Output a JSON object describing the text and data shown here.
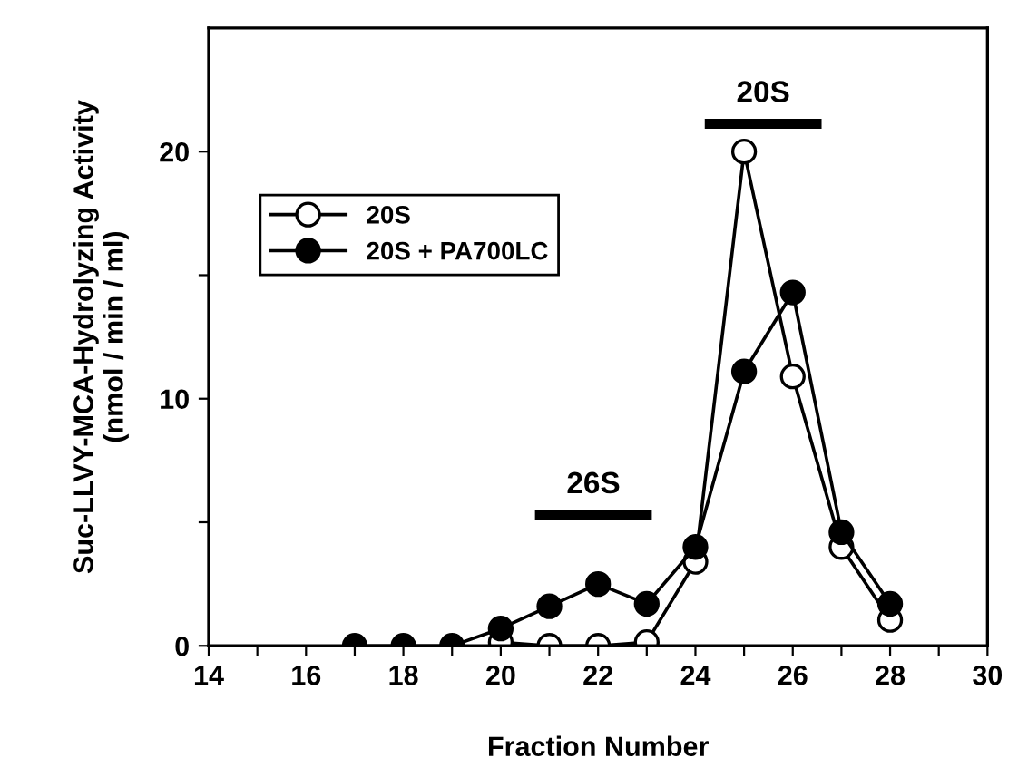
{
  "chart_data": {
    "type": "line",
    "xlabel": "Fraction Number",
    "ylabel": "Suc-LLVY-MCA-Hydrolyzing Activity\n(nmol / min / ml)",
    "xlim": [
      14,
      30
    ],
    "ylim": [
      0,
      25
    ],
    "xticks": [
      14,
      {
        "value": 15,
        "label": null
      },
      16,
      {
        "value": 17,
        "label": null
      },
      18,
      {
        "value": 19,
        "label": null
      },
      20,
      {
        "value": 21,
        "label": null
      },
      22,
      {
        "value": 23,
        "label": null
      },
      24,
      {
        "value": 25,
        "label": null
      },
      26,
      {
        "value": 27,
        "label": null
      },
      28,
      {
        "value": 29,
        "label": null
      },
      30
    ],
    "yticks": [
      0,
      {
        "value": 5,
        "label": null
      },
      10,
      {
        "value": 15,
        "label": null
      },
      20
    ],
    "marker": "circle",
    "line_style": "solid",
    "grid": false,
    "legend": "top left",
    "annotations": [
      "26S",
      "20S"
    ],
    "series": [
      {
        "name": "20S",
        "color": "#ffffff",
        "x": [
          20,
          21,
          22,
          23,
          24,
          25,
          26,
          27,
          28
        ],
        "values": [
          0.15,
          0,
          0,
          0.15,
          3.4,
          20,
          10.9,
          4.0,
          1.05
        ]
      },
      {
        "name": "20S + PA700LC",
        "color": "#000000",
        "x": [
          17,
          18,
          19,
          20,
          21,
          22,
          23,
          24,
          25,
          26,
          27,
          28
        ],
        "values": [
          0,
          0,
          0,
          0.7,
          1.6,
          2.5,
          1.7,
          4.0,
          11.1,
          14.3,
          4.6,
          1.7
        ]
      }
    ]
  }
}
